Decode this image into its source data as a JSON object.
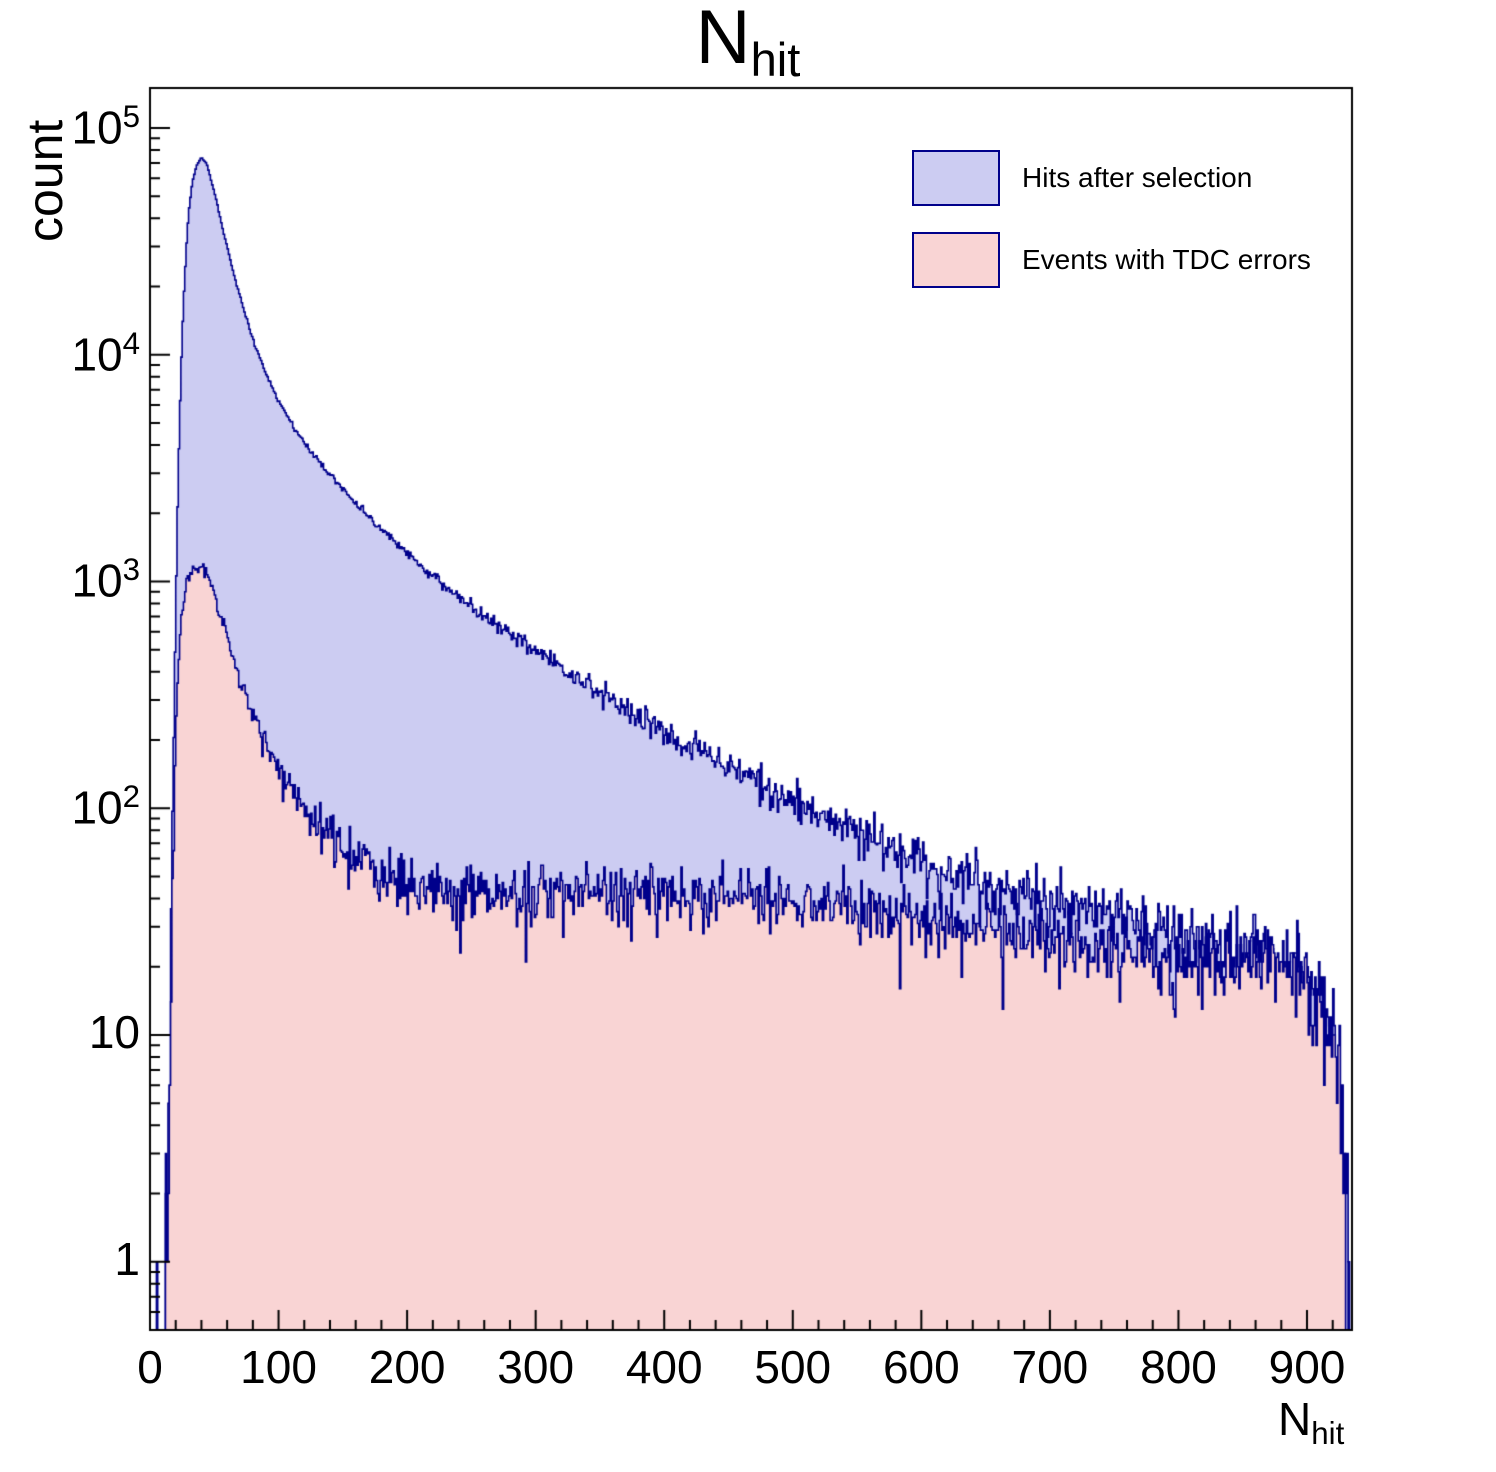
{
  "title": {
    "main": "N",
    "sub": "hit"
  },
  "axes": {
    "x": {
      "label_main": "N",
      "label_sub": "hit",
      "min": 0,
      "max": 935,
      "major_ticks": [
        0,
        100,
        200,
        300,
        400,
        500,
        600,
        700,
        800,
        900
      ],
      "minor_step": 20
    },
    "y": {
      "label": "count",
      "scale": "log",
      "min": 0.5,
      "max": 150000,
      "decades": [
        0,
        1,
        2,
        3,
        4,
        5
      ]
    }
  },
  "legend": {
    "items": [
      {
        "label": "Hits after selection",
        "fill": "#ccccf2",
        "line": "#00008b"
      },
      {
        "label": "Events with TDC errors",
        "fill": "#f9d4d4",
        "line": "#00008b"
      }
    ]
  },
  "chart_data": {
    "type": "area",
    "subtype": "step-histogram-log-y",
    "title": "N_hit",
    "xlabel": "N_hit",
    "ylabel": "count",
    "xlim": [
      0,
      935
    ],
    "ylim": [
      0.5,
      150000
    ],
    "bin_width": 1,
    "grid": false,
    "legend_position": "top-right",
    "frame_color": "#000000",
    "noise": {
      "type": "poisson",
      "seed": 71
    },
    "series": [
      {
        "name": "Hits after selection",
        "fill": "#ccccf2",
        "line": "#00008b",
        "anchors": [
          [
            2,
            0.05
          ],
          [
            8,
            0.2
          ],
          [
            12,
            0.5
          ],
          [
            14,
            2
          ],
          [
            16,
            20
          ],
          [
            18,
            150
          ],
          [
            20,
            800
          ],
          [
            22,
            3000
          ],
          [
            24,
            8000
          ],
          [
            26,
            17000
          ],
          [
            28,
            28000
          ],
          [
            30,
            42000
          ],
          [
            33,
            58000
          ],
          [
            36,
            68000
          ],
          [
            40,
            74000
          ],
          [
            44,
            70000
          ],
          [
            48,
            58000
          ],
          [
            52,
            47000
          ],
          [
            56,
            37000
          ],
          [
            60,
            30000
          ],
          [
            65,
            23000
          ],
          [
            70,
            18000
          ],
          [
            75,
            14500
          ],
          [
            80,
            11800
          ],
          [
            85,
            9800
          ],
          [
            90,
            8300
          ],
          [
            95,
            7200
          ],
          [
            100,
            6300
          ],
          [
            110,
            5000
          ],
          [
            120,
            4100
          ],
          [
            130,
            3450
          ],
          [
            140,
            2950
          ],
          [
            150,
            2550
          ],
          [
            160,
            2200
          ],
          [
            170,
            1930
          ],
          [
            180,
            1700
          ],
          [
            190,
            1500
          ],
          [
            200,
            1330
          ],
          [
            215,
            1120
          ],
          [
            230,
            950
          ],
          [
            245,
            820
          ],
          [
            260,
            710
          ],
          [
            275,
            620
          ],
          [
            290,
            540
          ],
          [
            305,
            475
          ],
          [
            320,
            415
          ],
          [
            335,
            365
          ],
          [
            350,
            322
          ],
          [
            365,
            286
          ],
          [
            380,
            254
          ],
          [
            395,
            227
          ],
          [
            410,
            203
          ],
          [
            425,
            182
          ],
          [
            440,
            163
          ],
          [
            455,
            147
          ],
          [
            470,
            132
          ],
          [
            485,
            119
          ],
          [
            500,
            108
          ],
          [
            515,
            98
          ],
          [
            530,
            89
          ],
          [
            545,
            81
          ],
          [
            560,
            74
          ],
          [
            575,
            68
          ],
          [
            590,
            62
          ],
          [
            605,
            57
          ],
          [
            620,
            53
          ],
          [
            640,
            48
          ],
          [
            660,
            44
          ],
          [
            680,
            41
          ],
          [
            700,
            38
          ],
          [
            720,
            36
          ],
          [
            740,
            34
          ],
          [
            760,
            32
          ],
          [
            780,
            30
          ],
          [
            800,
            28
          ],
          [
            820,
            26
          ],
          [
            840,
            25
          ],
          [
            855,
            26
          ],
          [
            870,
            24
          ],
          [
            885,
            21
          ],
          [
            900,
            18
          ],
          [
            910,
            15
          ],
          [
            920,
            11
          ],
          [
            926,
            7
          ],
          [
            930,
            3
          ],
          [
            932,
            1
          ],
          [
            934,
            0.4
          ]
        ]
      },
      {
        "name": "Events with TDC errors",
        "fill": "#f9d4d4",
        "line": "#00008b",
        "anchors": [
          [
            2,
            0.04
          ],
          [
            8,
            0.15
          ],
          [
            12,
            0.4
          ],
          [
            14,
            1.5
          ],
          [
            16,
            12
          ],
          [
            18,
            60
          ],
          [
            20,
            200
          ],
          [
            22,
            420
          ],
          [
            24,
            640
          ],
          [
            26,
            820
          ],
          [
            28,
            950
          ],
          [
            30,
            1050
          ],
          [
            33,
            1130
          ],
          [
            36,
            1180
          ],
          [
            40,
            1200
          ],
          [
            44,
            1100
          ],
          [
            48,
            950
          ],
          [
            52,
            800
          ],
          [
            56,
            670
          ],
          [
            60,
            560
          ],
          [
            65,
            450
          ],
          [
            70,
            370
          ],
          [
            75,
            310
          ],
          [
            80,
            262
          ],
          [
            85,
            225
          ],
          [
            90,
            196
          ],
          [
            95,
            172
          ],
          [
            100,
            152
          ],
          [
            110,
            122
          ],
          [
            120,
            101
          ],
          [
            130,
            86
          ],
          [
            140,
            75
          ],
          [
            150,
            67
          ],
          [
            160,
            61
          ],
          [
            170,
            56
          ],
          [
            180,
            52
          ],
          [
            190,
            49
          ],
          [
            200,
            47
          ],
          [
            220,
            44
          ],
          [
            240,
            43
          ],
          [
            260,
            42
          ],
          [
            280,
            42
          ],
          [
            300,
            42
          ],
          [
            320,
            42
          ],
          [
            340,
            43
          ],
          [
            360,
            43
          ],
          [
            380,
            43
          ],
          [
            400,
            42
          ],
          [
            420,
            42
          ],
          [
            440,
            41
          ],
          [
            460,
            41
          ],
          [
            480,
            40
          ],
          [
            500,
            39
          ],
          [
            520,
            38
          ],
          [
            540,
            37
          ],
          [
            560,
            36
          ],
          [
            580,
            35
          ],
          [
            600,
            33
          ],
          [
            620,
            32
          ],
          [
            640,
            30
          ],
          [
            660,
            29
          ],
          [
            680,
            27
          ],
          [
            700,
            26
          ],
          [
            720,
            25
          ],
          [
            740,
            24
          ],
          [
            760,
            23
          ],
          [
            780,
            22
          ],
          [
            800,
            21
          ],
          [
            820,
            20
          ],
          [
            840,
            21
          ],
          [
            855,
            23
          ],
          [
            870,
            21
          ],
          [
            885,
            19
          ],
          [
            900,
            16
          ],
          [
            910,
            13
          ],
          [
            920,
            9
          ],
          [
            926,
            6
          ],
          [
            930,
            2
          ],
          [
            932,
            0.7
          ],
          [
            934,
            0.3
          ]
        ]
      }
    ]
  }
}
